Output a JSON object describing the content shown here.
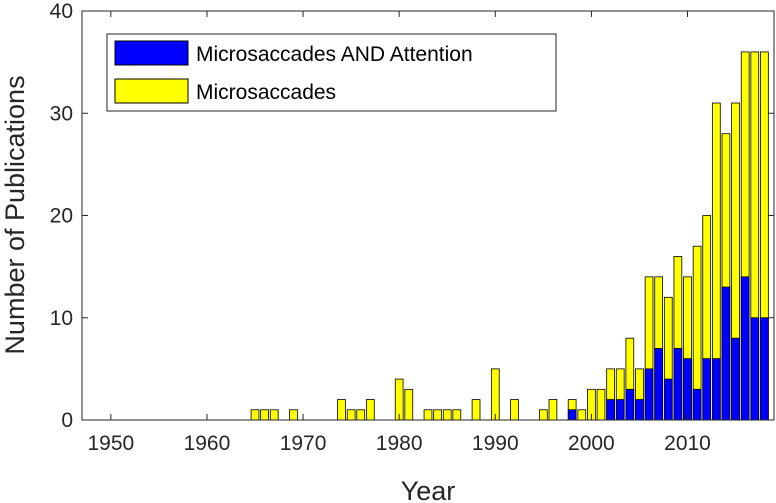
{
  "chart_data": {
    "type": "bar",
    "stacked": "overlay",
    "xlabel": "Year",
    "ylabel": "Number of Publications",
    "xlim": [
      1947,
      2019
    ],
    "ylim": [
      0,
      40
    ],
    "x_ticks": [
      1950,
      1960,
      1970,
      1980,
      1990,
      2000,
      2010
    ],
    "y_ticks": [
      0,
      10,
      20,
      30,
      40
    ],
    "legend_position": "top-left",
    "grid": false,
    "x": [
      1965,
      1966,
      1967,
      1969,
      1974,
      1975,
      1976,
      1977,
      1980,
      1981,
      1983,
      1984,
      1985,
      1986,
      1988,
      1990,
      1992,
      1995,
      1996,
      1998,
      1999,
      2000,
      2001,
      2002,
      2003,
      2004,
      2005,
      2006,
      2007,
      2008,
      2009,
      2010,
      2011,
      2012,
      2013,
      2014,
      2015,
      2016,
      2017,
      2018
    ],
    "series": [
      {
        "name": "Microsaccades",
        "color": "#ffff00",
        "values": [
          1,
          1,
          1,
          1,
          2,
          1,
          1,
          2,
          4,
          3,
          1,
          1,
          1,
          1,
          2,
          5,
          2,
          1,
          2,
          2,
          1,
          3,
          3,
          5,
          5,
          8,
          5,
          14,
          14,
          12,
          16,
          14,
          17,
          20,
          31,
          28,
          31,
          36,
          36,
          36
        ]
      },
      {
        "name": "Microsaccades AND Attention",
        "color": "#0000ff",
        "values": [
          0,
          0,
          0,
          0,
          0,
          0,
          0,
          0,
          0,
          0,
          0,
          0,
          0,
          0,
          0,
          0,
          0,
          0,
          0,
          1,
          0,
          0,
          0,
          2,
          2,
          3,
          2,
          5,
          7,
          4,
          7,
          6,
          3,
          6,
          6,
          13,
          8,
          14,
          10,
          10
        ]
      }
    ],
    "legend": [
      {
        "label": "Microsaccades AND Attention",
        "color": "#0000ff"
      },
      {
        "label": "Microsaccades",
        "color": "#ffff00"
      }
    ]
  }
}
